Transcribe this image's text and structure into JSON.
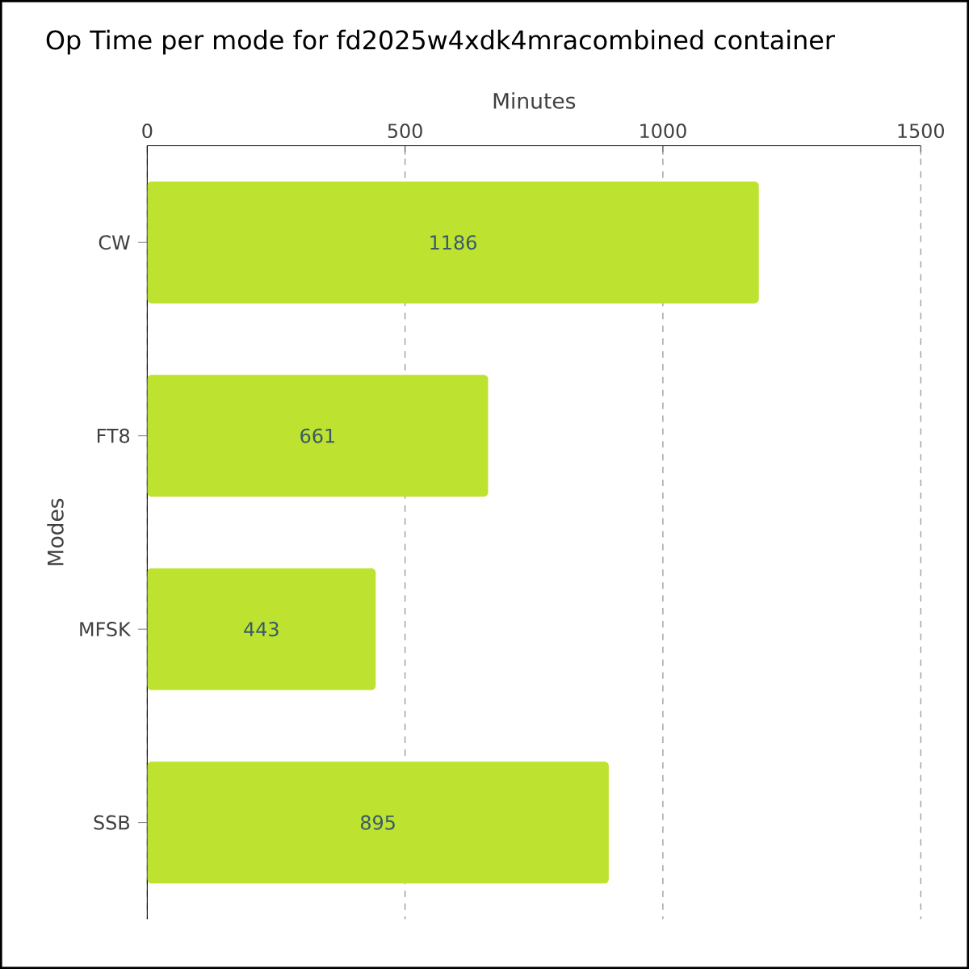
{
  "chart_data": {
    "type": "bar",
    "orientation": "horizontal",
    "title": "Op Time per mode for fd2025w4xdk4mracombined container",
    "xlabel": "Minutes",
    "ylabel": "Modes",
    "categories": [
      "CW",
      "FT8",
      "MFSK",
      "SSB"
    ],
    "values": [
      1186,
      661,
      443,
      895
    ],
    "color": "#bde22f",
    "xlim": [
      0,
      1500
    ],
    "xticks": [
      0,
      500,
      1000,
      1500
    ],
    "grid": "x",
    "data_labels": true
  }
}
